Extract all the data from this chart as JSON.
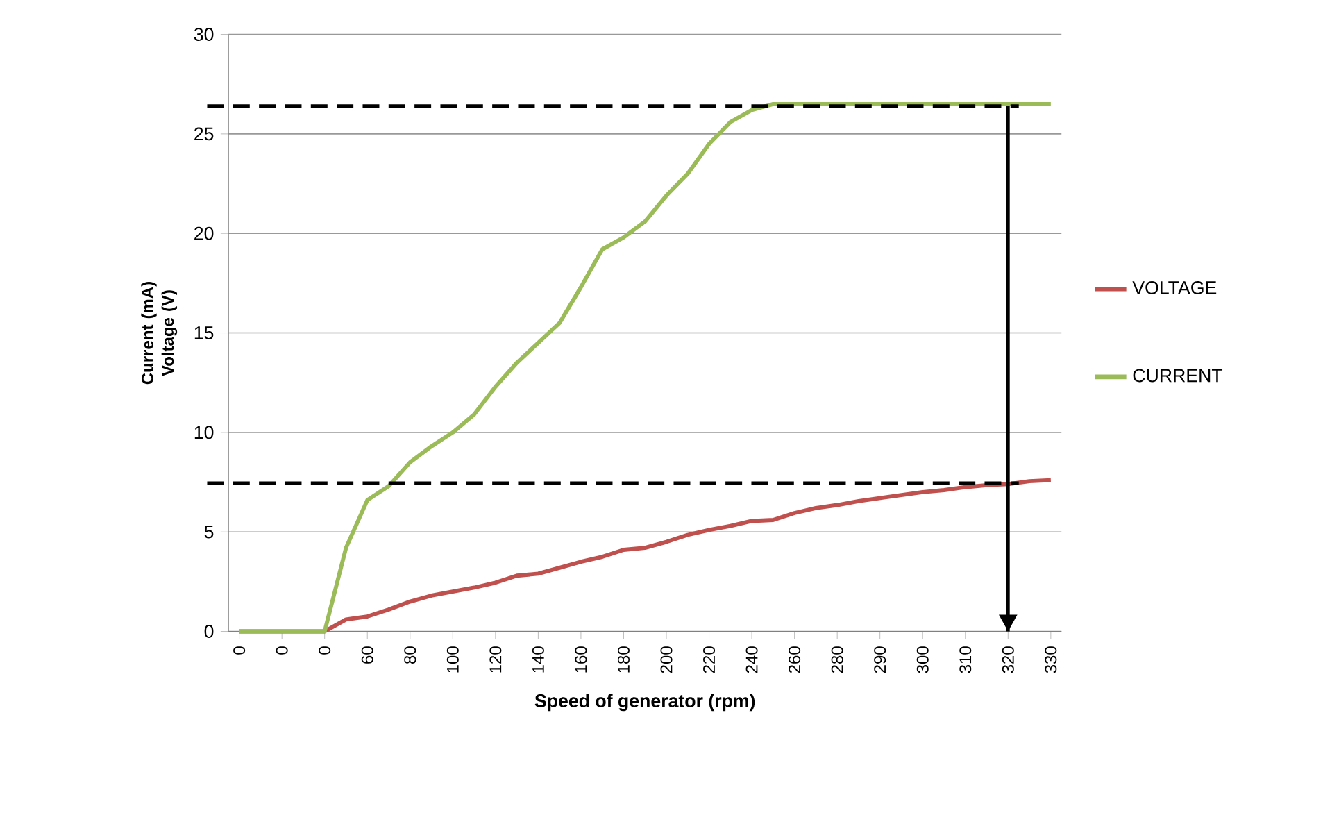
{
  "chart_data": {
    "type": "line",
    "xlabel": "Speed of generator (rpm)",
    "ylabel": "Current (mA) Voltage (V)",
    "categories": [
      "0",
      null,
      "0",
      null,
      "0",
      null,
      "60",
      null,
      "80",
      null,
      "100",
      null,
      "120",
      null,
      "140",
      null,
      "160",
      null,
      "180",
      null,
      "200",
      null,
      "220",
      null,
      "240",
      null,
      "260",
      null,
      "280",
      null,
      "290",
      null,
      "300",
      null,
      "310",
      null,
      "320",
      null,
      "330"
    ],
    "ylim": [
      0,
      30
    ],
    "yticks": [
      0,
      5,
      10,
      15,
      20,
      25,
      30
    ],
    "grid": "y",
    "legend": "right",
    "marker": "none",
    "series": [
      {
        "name": "VOLTAGE",
        "color": "#c0504d",
        "values": [
          0,
          0,
          0,
          0,
          0,
          0.6,
          0.75,
          1.1,
          1.5,
          1.8,
          2.0,
          2.2,
          2.45,
          2.8,
          2.9,
          3.2,
          3.5,
          3.75,
          4.1,
          4.2,
          4.5,
          4.85,
          5.1,
          5.3,
          5.55,
          5.6,
          5.95,
          6.2,
          6.35,
          6.55,
          6.7,
          6.85,
          7.0,
          7.1,
          7.25,
          7.35,
          7.4,
          7.55,
          7.6
        ]
      },
      {
        "name": "CURRENT",
        "color": "#9bbb59",
        "values": [
          0,
          0,
          0,
          0,
          0,
          4.2,
          6.6,
          7.3,
          8.5,
          9.3,
          10.0,
          10.9,
          12.3,
          13.5,
          14.5,
          15.5,
          17.3,
          19.2,
          19.8,
          20.6,
          21.9,
          23.0,
          24.5,
          25.6,
          26.2,
          26.5,
          26.5,
          26.5,
          26.5,
          26.5,
          26.5,
          26.5,
          26.5,
          26.5,
          26.5,
          26.5,
          26.5,
          26.5,
          26.5
        ]
      }
    ],
    "ref_lines": [
      {
        "axis": "x",
        "value": "320",
        "color": "#000000",
        "line_style": "solid"
      },
      {
        "axis": "y",
        "value": 26.4,
        "color": "#000000",
        "line_style": "dashed"
      },
      {
        "axis": "y",
        "value": 7.45,
        "color": "#000000",
        "line_style": "dashed"
      }
    ]
  }
}
